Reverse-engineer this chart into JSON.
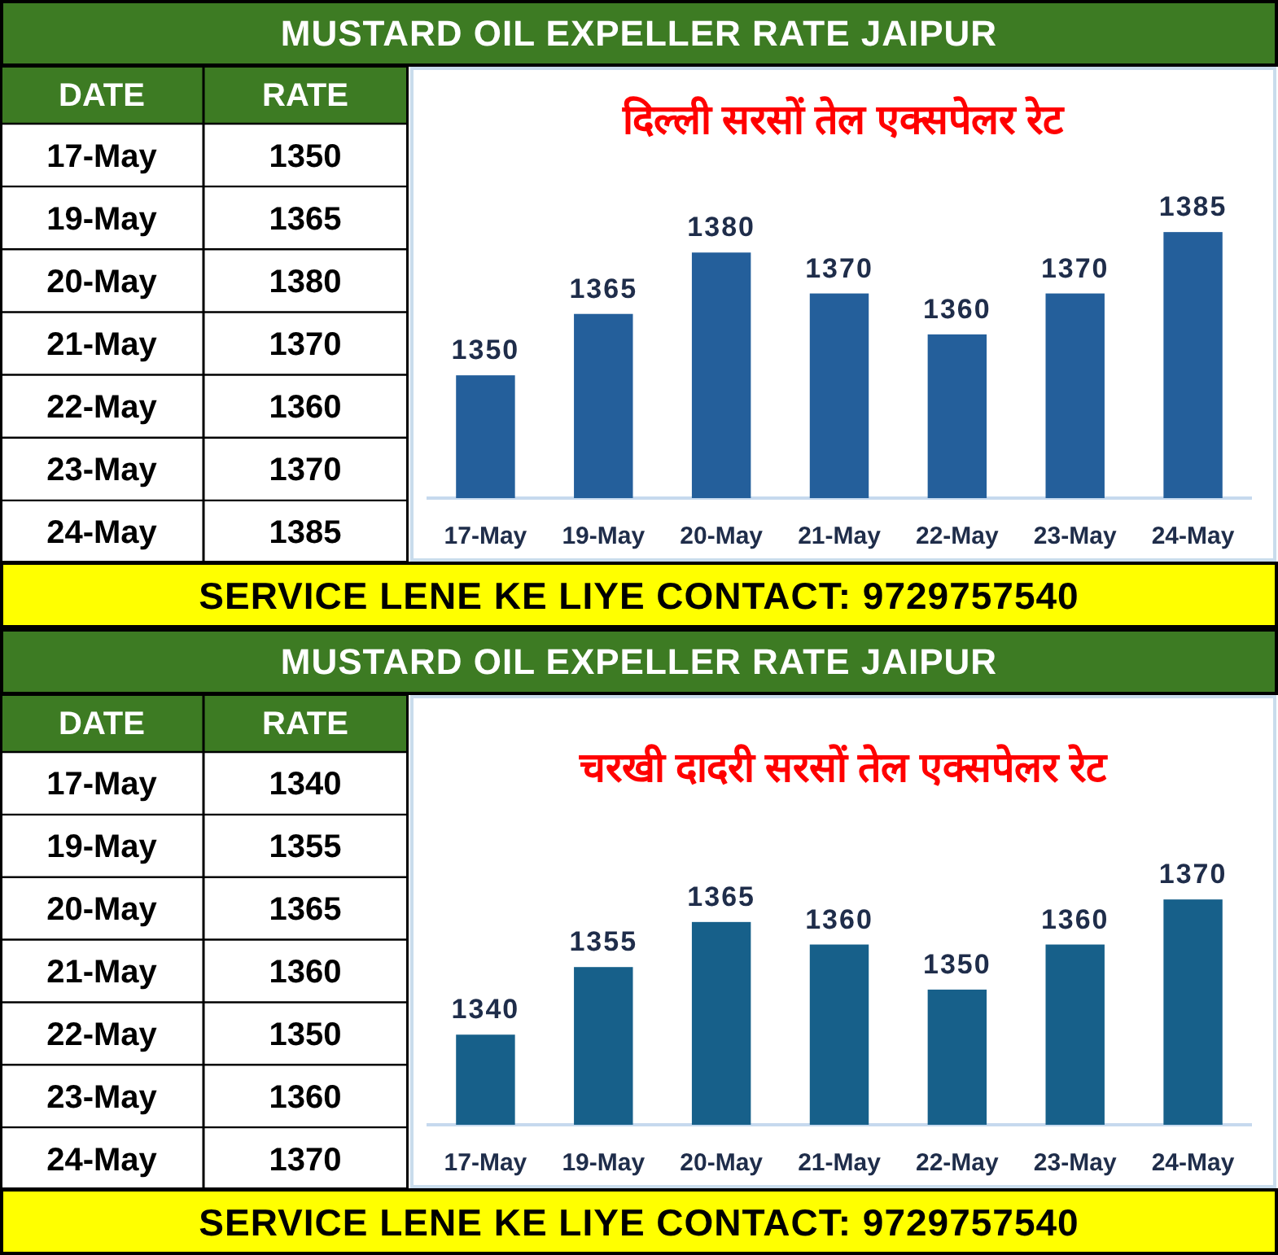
{
  "chart_data": [
    {
      "type": "other",
      "annotations": [
        "DATE",
        "RATE",
        "17-May",
        "1350",
        "19-May",
        "1365",
        "20-May",
        "1380",
        "21-May",
        "1370",
        "22-May",
        "1360",
        "23-May",
        "1370",
        "24-May",
        "1385"
      ]
    },
    {
      "type": "bar",
      "title": "दिल्ली सरसों तेल एक्सपेलर रेट",
      "subtitle": "MUSTARD OIL EXPELLER RATE JAIPUR",
      "categories": [
        "17-May",
        "19-May",
        "20-May",
        "21-May",
        "22-May",
        "23-May",
        "24-May"
      ],
      "values": [
        1350,
        1365,
        1380,
        1370,
        1360,
        1370,
        1385
      ],
      "color": "#245f9b",
      "ylim": [
        1320,
        1425
      ],
      "data_labels": true,
      "annotations": [
        "SERVICE LENE KE LIYE CONTACT: 9729757540"
      ]
    },
    {
      "type": "other",
      "annotations": [
        "DATE",
        "RATE",
        "17-May",
        "1340",
        "19-May",
        "1355",
        "20-May",
        "1365",
        "21-May",
        "1360",
        "22-May",
        "1350",
        "23-May",
        "1360",
        "24-May",
        "1370"
      ]
    },
    {
      "type": "bar",
      "title": "चरखी दादरी सरसों तेल एक्सपेलर रेट",
      "subtitle": "MUSTARD OIL EXPELLER RATE JAIPUR",
      "categories": [
        "17-May",
        "19-May",
        "20-May",
        "21-May",
        "22-May",
        "23-May",
        "24-May"
      ],
      "values": [
        1340,
        1355,
        1365,
        1360,
        1350,
        1360,
        1370
      ],
      "color": "#17608a",
      "ylim": [
        1320,
        1415
      ],
      "data_labels": true,
      "annotations": [
        "SERVICE LENE KE LIYE CONTACT: 9729757540"
      ]
    }
  ]
}
